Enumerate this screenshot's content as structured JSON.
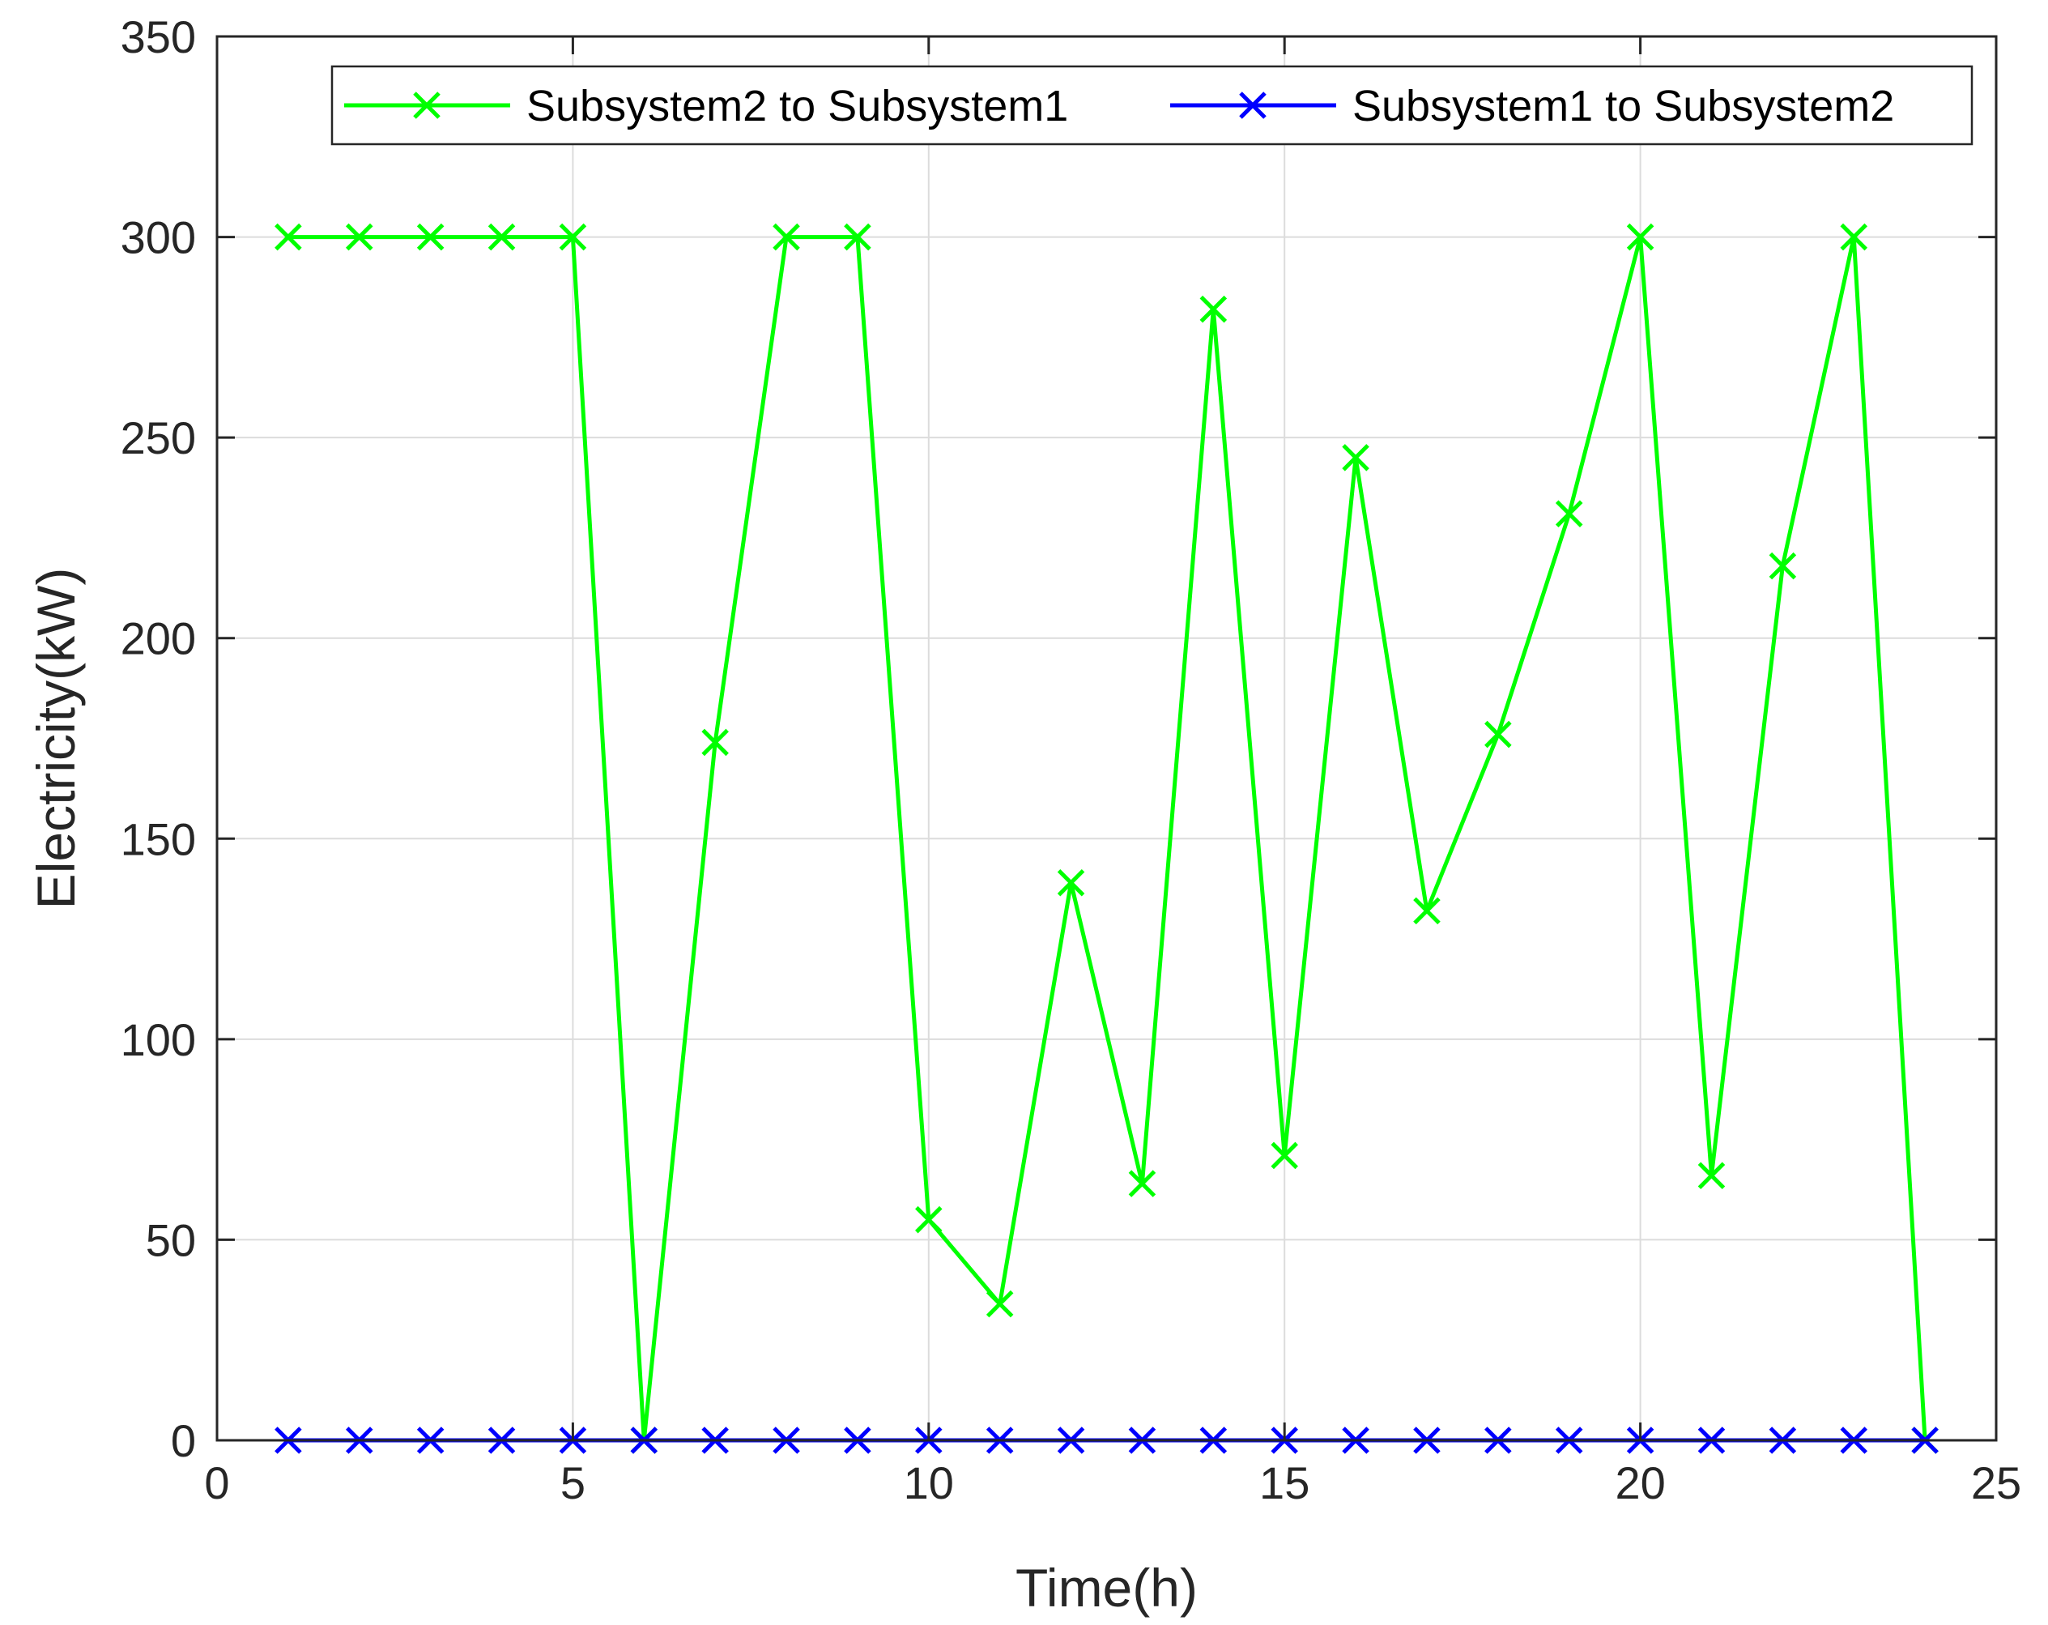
{
  "chart_data": {
    "type": "line",
    "xlabel": "Time(h)",
    "ylabel": "Electricity(kW)",
    "xlim": [
      0,
      25
    ],
    "ylim": [
      0,
      350
    ],
    "xticks": [
      0,
      5,
      10,
      15,
      20,
      25
    ],
    "yticks": [
      0,
      50,
      100,
      150,
      200,
      250,
      300,
      350
    ],
    "grid": true,
    "legend": "top-right",
    "x": [
      1,
      2,
      3,
      4,
      5,
      6,
      7,
      8,
      9,
      10,
      11,
      12,
      13,
      14,
      15,
      16,
      17,
      18,
      19,
      20,
      21,
      22,
      23,
      24
    ],
    "series": [
      {
        "name": "Subsystem2 to Subsystem1",
        "color": "#00ff00",
        "marker": "x",
        "values": [
          300,
          300,
          300,
          300,
          300,
          0,
          174,
          300,
          300,
          55,
          34,
          139,
          64,
          282,
          71,
          245,
          132,
          176,
          231,
          300,
          66,
          218,
          300,
          0
        ]
      },
      {
        "name": "Subsystem1 to Subsystem2",
        "color": "#0000ff",
        "marker": "x",
        "values": [
          0,
          0,
          0,
          0,
          0,
          0,
          0,
          0,
          0,
          0,
          0,
          0,
          0,
          0,
          0,
          0,
          0,
          0,
          0,
          0,
          0,
          0,
          0,
          0
        ]
      }
    ]
  }
}
